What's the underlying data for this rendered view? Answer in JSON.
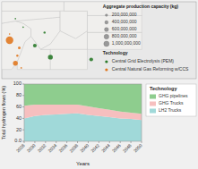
{
  "chart_data": [
    {
      "type": "map",
      "title": "Aggregate production capacity (kg)",
      "legend_title": "Technology",
      "legend": "right",
      "tick_labels": false,
      "xlim": [
        0,
        1
      ],
      "ylim": [
        0,
        1
      ],
      "series": [
        {
          "name": "Central Grid Electrolysis (PEM)",
          "color": "#2a7a2a",
          "x": [
            0.22,
            0.17,
            0.25,
            0.46,
            0.07,
            0.11
          ],
          "values": [
            0.6,
            0.43,
            0.28,
            0.25,
            0.78,
            0.67
          ],
          "size": [
            4,
            7,
            9,
            7,
            1.5,
            1.5
          ]
        },
        {
          "name": "Central Natural Gas Reforming w/CCS",
          "color": "#e07820",
          "x": [
            0.04,
            0.09,
            0.08,
            0.07,
            0.1,
            0.04
          ],
          "values": [
            0.5,
            0.4,
            0.3,
            0.2,
            0.14,
            0.58
          ],
          "size": [
            14,
            5,
            4,
            9,
            3,
            2
          ]
        }
      ],
      "size_legend": [
        {
          "value": 200000000,
          "label": "200,000,000"
        },
        {
          "value": 400000000,
          "label": "400,000,000"
        },
        {
          "value": 600000000,
          "label": "600,000,000"
        },
        {
          "value": 800000000,
          "label": "800,000,000"
        },
        {
          "value": 1000000000,
          "label": "1,000,000,000"
        }
      ]
    },
    {
      "type": "area",
      "stacked": true,
      "legend_title": "Technology",
      "legend": "right",
      "xlabel": "Years",
      "ylabel": "Total hydrogen flows (%)",
      "x": [
        2028,
        2030,
        2032,
        2034,
        2036,
        2038,
        2040,
        2042,
        2044,
        2046,
        2048,
        2050
      ],
      "xlim": [
        2028,
        2050
      ],
      "xticks": [
        2028,
        2030,
        2032,
        2034,
        2036,
        2038,
        2040,
        2042,
        2044,
        2046,
        2048,
        2050
      ],
      "ylim": [
        0,
        100
      ],
      "yticks": [
        {
          "value": 0,
          "label": "0.0"
        },
        20,
        40,
        60,
        80,
        100
      ],
      "series": [
        {
          "name": "LH2 Trucks",
          "color": "#96d5d5",
          "values": [
            40,
            44,
            46,
            47,
            48,
            49,
            46,
            44,
            42,
            40,
            39,
            37
          ]
        },
        {
          "name": "GHG Trucks",
          "color": "#f5b8b8",
          "values": [
            22,
            20,
            18,
            17,
            16,
            15,
            15,
            14,
            13,
            12,
            11,
            11
          ]
        },
        {
          "name": "GHG pipelines",
          "color": "#82c882",
          "values": [
            38,
            36,
            36,
            36,
            36,
            36,
            39,
            42,
            45,
            48,
            50,
            52
          ]
        }
      ]
    }
  ]
}
